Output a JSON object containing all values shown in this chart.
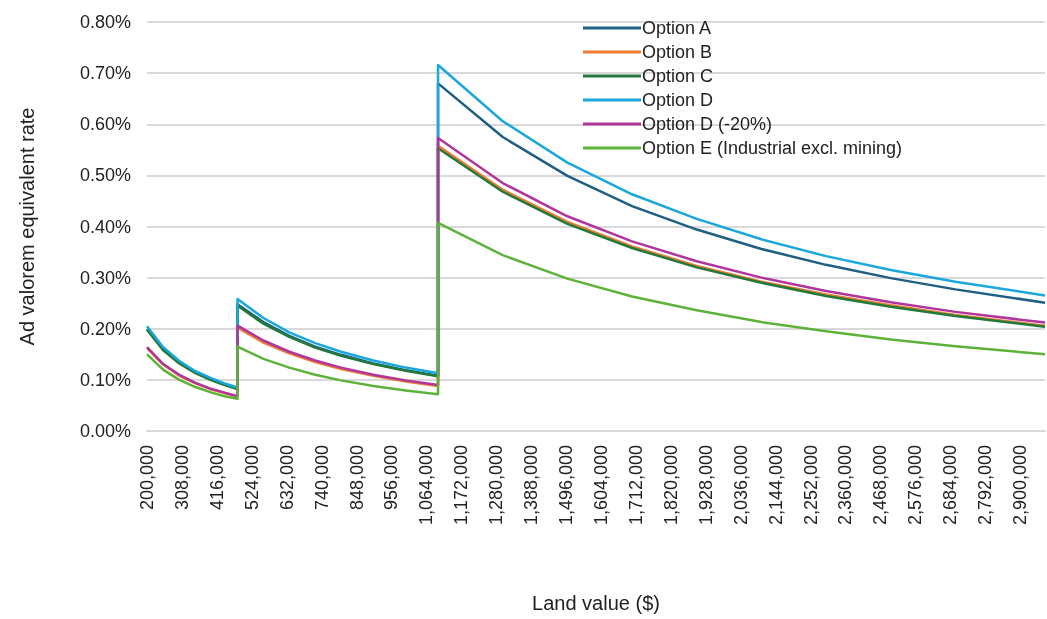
{
  "chart_data": {
    "type": "line",
    "xlabel": "Land value ($)",
    "ylabel": "Ad valorem equivalent rate",
    "x": [
      200000,
      250000,
      300000,
      350000,
      400000,
      440000,
      480000,
      480000,
      560000,
      640000,
      720000,
      800000,
      900000,
      1000000,
      1100000,
      1100000,
      1300000,
      1500000,
      1700000,
      1900000,
      2100000,
      2300000,
      2500000,
      2700000,
      2977000
    ],
    "series": [
      {
        "name": "Option A",
        "color": "#1f5f84",
        "values": [
          0.2,
          0.16,
          0.133,
          0.114,
          0.1,
          0.091,
          0.083,
          0.248,
          0.213,
          0.186,
          0.165,
          0.149,
          0.132,
          0.119,
          0.108,
          0.68,
          0.575,
          0.499,
          0.44,
          0.394,
          0.356,
          0.325,
          0.299,
          0.277,
          0.251
        ]
      },
      {
        "name": "Option B",
        "color": "#ed7d31",
        "values": [
          0.162,
          0.13,
          0.108,
          0.093,
          0.081,
          0.074,
          0.068,
          0.202,
          0.173,
          0.152,
          0.135,
          0.121,
          0.108,
          0.097,
          0.088,
          0.558,
          0.472,
          0.409,
          0.361,
          0.323,
          0.292,
          0.267,
          0.246,
          0.227,
          0.206
        ]
      },
      {
        "name": "Option C",
        "color": "#217a3a",
        "values": [
          0.198,
          0.158,
          0.132,
          0.113,
          0.099,
          0.09,
          0.082,
          0.245,
          0.21,
          0.184,
          0.163,
          0.147,
          0.131,
          0.118,
          0.107,
          0.553,
          0.468,
          0.405,
          0.358,
          0.32,
          0.29,
          0.264,
          0.243,
          0.225,
          0.204
        ]
      },
      {
        "name": "Option D",
        "color": "#1aa7dd",
        "values": [
          0.205,
          0.164,
          0.137,
          0.117,
          0.103,
          0.093,
          0.085,
          0.258,
          0.221,
          0.193,
          0.172,
          0.155,
          0.138,
          0.124,
          0.113,
          0.716,
          0.606,
          0.525,
          0.463,
          0.415,
          0.375,
          0.342,
          0.315,
          0.292,
          0.265
        ]
      },
      {
        "name": "Option D (-20%)",
        "color": "#b0359d",
        "values": [
          0.164,
          0.131,
          0.11,
          0.094,
          0.082,
          0.075,
          0.068,
          0.206,
          0.177,
          0.155,
          0.138,
          0.124,
          0.11,
          0.099,
          0.09,
          0.573,
          0.485,
          0.42,
          0.371,
          0.332,
          0.3,
          0.274,
          0.252,
          0.233,
          0.212
        ]
      },
      {
        "name": "Option E (Industrial excl. mining)",
        "color": "#5db33a",
        "values": [
          0.15,
          0.12,
          0.1,
          0.086,
          0.075,
          0.068,
          0.063,
          0.165,
          0.141,
          0.124,
          0.11,
          0.099,
          0.088,
          0.079,
          0.072,
          0.407,
          0.344,
          0.298,
          0.263,
          0.236,
          0.213,
          0.195,
          0.179,
          0.166,
          0.15
        ]
      }
    ],
    "xlim": [
      200000,
      2977000
    ],
    "xticks": [
      {
        "value": 200000,
        "label": "200,000"
      },
      {
        "value": 308000,
        "label": "308,000"
      },
      {
        "value": 416000,
        "label": "416,000"
      },
      {
        "value": 524000,
        "label": "524,000"
      },
      {
        "value": 632000,
        "label": "632,000"
      },
      {
        "value": 740000,
        "label": "740,000"
      },
      {
        "value": 848000,
        "label": "848,000"
      },
      {
        "value": 956000,
        "label": "956,000"
      },
      {
        "value": 1064000,
        "label": "1,064,000"
      },
      {
        "value": 1172000,
        "label": "1,172,000"
      },
      {
        "value": 1280000,
        "label": "1,280,000"
      },
      {
        "value": 1388000,
        "label": "1,388,000"
      },
      {
        "value": 1496000,
        "label": "1,496,000"
      },
      {
        "value": 1604000,
        "label": "1,604,000"
      },
      {
        "value": 1712000,
        "label": "1,712,000"
      },
      {
        "value": 1820000,
        "label": "1,820,000"
      },
      {
        "value": 1928000,
        "label": "1,928,000"
      },
      {
        "value": 2036000,
        "label": "2,036,000"
      },
      {
        "value": 2144000,
        "label": "2,144,000"
      },
      {
        "value": 2252000,
        "label": "2,252,000"
      },
      {
        "value": 2360000,
        "label": "2,360,000"
      },
      {
        "value": 2468000,
        "label": "2,468,000"
      },
      {
        "value": 2576000,
        "label": "2,576,000"
      },
      {
        "value": 2684000,
        "label": "2,684,000"
      },
      {
        "value": 2792000,
        "label": "2,792,000"
      },
      {
        "value": 2900000,
        "label": "2,900,000"
      }
    ],
    "ylim": [
      0,
      0.8
    ],
    "yticks": [
      {
        "value": 0,
        "label": "0.00%"
      },
      {
        "value": 0.1,
        "label": "0.10%"
      },
      {
        "value": 0.2,
        "label": "0.20%"
      },
      {
        "value": 0.3,
        "label": "0.30%"
      },
      {
        "value": 0.4,
        "label": "0.40%"
      },
      {
        "value": 0.5,
        "label": "0.50%"
      },
      {
        "value": 0.6,
        "label": "0.60%"
      },
      {
        "value": 0.7,
        "label": "0.70%"
      },
      {
        "value": 0.8,
        "label": "0.80%"
      }
    ],
    "grid": "y",
    "legend": "top right",
    "marker": "none",
    "line_style": "solid"
  }
}
